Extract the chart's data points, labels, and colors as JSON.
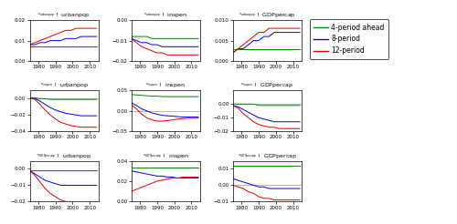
{
  "years": [
    1975,
    1978,
    1981,
    1984,
    1987,
    1990,
    1993,
    1996,
    1999,
    2002,
    2005,
    2008,
    2011,
    2014
  ],
  "xticks": [
    1980,
    1990,
    2000,
    2010
  ],
  "xlim": [
    1975,
    2015
  ],
  "colors": {
    "green": "#008800",
    "blue": "#0000dd",
    "red": "#dd0000",
    "gray": "#999999"
  },
  "legend_labels": [
    "4-period ahead",
    "8-period",
    "12-period"
  ],
  "panels": {
    "r0c0": {
      "title_shock": "urbanpop",
      "title_resp": "urbanpop",
      "ylim": [
        0,
        0.02
      ],
      "yticks": [
        0,
        0.01,
        0.02
      ],
      "green": [
        0.007,
        0.007,
        0.007,
        0.007,
        0.007,
        0.007,
        0.007,
        0.007,
        0.007,
        0.007,
        0.007,
        0.007,
        0.007,
        0.007
      ],
      "blue": [
        0.008,
        0.008,
        0.009,
        0.009,
        0.01,
        0.01,
        0.01,
        0.011,
        0.011,
        0.011,
        0.012,
        0.012,
        0.012,
        0.012
      ],
      "red": [
        0.008,
        0.009,
        0.01,
        0.011,
        0.012,
        0.013,
        0.014,
        0.015,
        0.015,
        0.016,
        0.016,
        0.016,
        0.016,
        0.016
      ],
      "zero_line": false
    },
    "r0c1": {
      "title_shock": "urbanpop",
      "title_resp": "inspen",
      "ylim": [
        -0.02,
        0
      ],
      "yticks": [
        -0.02,
        -0.01,
        0
      ],
      "green": [
        -0.008,
        -0.008,
        -0.008,
        -0.008,
        -0.009,
        -0.009,
        -0.009,
        -0.009,
        -0.009,
        -0.009,
        -0.009,
        -0.009,
        -0.009,
        -0.009
      ],
      "blue": [
        -0.009,
        -0.01,
        -0.011,
        -0.011,
        -0.012,
        -0.012,
        -0.013,
        -0.013,
        -0.013,
        -0.013,
        -0.013,
        -0.013,
        -0.013,
        -0.013
      ],
      "red": [
        -0.009,
        -0.011,
        -0.013,
        -0.014,
        -0.015,
        -0.016,
        -0.016,
        -0.017,
        -0.017,
        -0.017,
        -0.017,
        -0.017,
        -0.017,
        -0.017
      ],
      "zero_line": false
    },
    "r0c2": {
      "title_shock": "urbanpop",
      "title_resp": "GDPpercap",
      "ylim": [
        0,
        0.01
      ],
      "yticks": [
        0,
        0.005,
        0.01
      ],
      "green": [
        0.003,
        0.003,
        0.003,
        0.003,
        0.003,
        0.003,
        0.003,
        0.003,
        0.003,
        0.003,
        0.003,
        0.003,
        0.003,
        0.003
      ],
      "blue": [
        0.002,
        0.003,
        0.003,
        0.004,
        0.005,
        0.005,
        0.006,
        0.006,
        0.007,
        0.007,
        0.007,
        0.007,
        0.007,
        0.007
      ],
      "red": [
        0.002,
        0.003,
        0.004,
        0.005,
        0.006,
        0.007,
        0.007,
        0.008,
        0.008,
        0.008,
        0.008,
        0.008,
        0.008,
        0.008
      ],
      "zero_line": false
    },
    "r1c0": {
      "title_shock": "inspen",
      "title_resp": "urbanpop",
      "ylim": [
        -0.04,
        0.01
      ],
      "yticks": [
        -0.04,
        -0.02,
        0
      ],
      "green": [
        0.001,
        0.001,
        0.0,
        0.0,
        -0.001,
        -0.001,
        -0.001,
        -0.001,
        -0.001,
        -0.001,
        -0.001,
        -0.001,
        -0.001,
        -0.001
      ],
      "blue": [
        0.001,
        0.0,
        -0.003,
        -0.007,
        -0.011,
        -0.014,
        -0.016,
        -0.018,
        -0.019,
        -0.02,
        -0.021,
        -0.021,
        -0.021,
        -0.021
      ],
      "red": [
        0.001,
        -0.001,
        -0.007,
        -0.014,
        -0.02,
        -0.025,
        -0.029,
        -0.031,
        -0.033,
        -0.034,
        -0.035,
        -0.035,
        -0.035,
        -0.035
      ],
      "zero_line": true
    },
    "r1c1": {
      "title_shock": "inspen",
      "title_resp": "inspen",
      "ylim": [
        -0.05,
        0.05
      ],
      "yticks": [
        -0.05,
        0,
        0.05
      ],
      "green": [
        0.04,
        0.039,
        0.038,
        0.037,
        0.036,
        0.036,
        0.035,
        0.035,
        0.035,
        0.035,
        0.035,
        0.035,
        0.035,
        0.035
      ],
      "blue": [
        0.02,
        0.013,
        0.005,
        0.0,
        -0.005,
        -0.008,
        -0.011,
        -0.012,
        -0.013,
        -0.014,
        -0.015,
        -0.015,
        -0.015,
        -0.015
      ],
      "red": [
        0.015,
        0.005,
        -0.008,
        -0.017,
        -0.022,
        -0.025,
        -0.025,
        -0.024,
        -0.022,
        -0.02,
        -0.019,
        -0.018,
        -0.018,
        -0.018
      ],
      "zero_line": true
    },
    "r1c2": {
      "title_shock": "inspen",
      "title_resp": "GDPpercap",
      "ylim": [
        -0.02,
        0.01
      ],
      "yticks": [
        -0.02,
        -0.01,
        0
      ],
      "green": [
        0.0,
        0.0,
        0.0,
        0.0,
        0.0,
        -0.001,
        -0.001,
        -0.001,
        -0.001,
        -0.001,
        -0.001,
        -0.001,
        -0.001,
        -0.001
      ],
      "blue": [
        -0.001,
        -0.002,
        -0.004,
        -0.006,
        -0.008,
        -0.01,
        -0.011,
        -0.012,
        -0.013,
        -0.013,
        -0.013,
        -0.013,
        -0.013,
        -0.013
      ],
      "red": [
        -0.001,
        -0.003,
        -0.007,
        -0.01,
        -0.013,
        -0.015,
        -0.016,
        -0.017,
        -0.017,
        -0.018,
        -0.018,
        -0.018,
        -0.018,
        -0.018
      ],
      "zero_line": true
    },
    "r2c0": {
      "title_shock": "GDPpercap",
      "title_resp": "urbanpop",
      "ylim": [
        -0.02,
        0.005
      ],
      "yticks": [
        -0.02,
        -0.01,
        0
      ],
      "green": [
        -0.001,
        -0.001,
        -0.001,
        -0.001,
        -0.001,
        -0.001,
        -0.001,
        -0.001,
        -0.001,
        -0.001,
        -0.001,
        -0.001,
        -0.001,
        -0.001
      ],
      "blue": [
        -0.001,
        -0.003,
        -0.005,
        -0.007,
        -0.008,
        -0.009,
        -0.01,
        -0.01,
        -0.01,
        -0.01,
        -0.01,
        -0.01,
        -0.01,
        -0.01
      ],
      "red": [
        -0.001,
        -0.004,
        -0.008,
        -0.012,
        -0.015,
        -0.017,
        -0.019,
        -0.02,
        -0.02,
        -0.021,
        -0.021,
        -0.021,
        -0.021,
        -0.021
      ],
      "zero_line": false
    },
    "r2c1": {
      "title_shock": "GDPpercap",
      "title_resp": "inspen",
      "ylim": [
        0,
        0.04
      ],
      "yticks": [
        0,
        0.02,
        0.04
      ],
      "green": [
        0.033,
        0.033,
        0.033,
        0.033,
        0.033,
        0.033,
        0.033,
        0.033,
        0.033,
        0.033,
        0.033,
        0.033,
        0.033,
        0.033
      ],
      "blue": [
        0.03,
        0.029,
        0.028,
        0.027,
        0.026,
        0.025,
        0.025,
        0.024,
        0.024,
        0.023,
        0.023,
        0.023,
        0.023,
        0.023
      ],
      "red": [
        0.01,
        0.012,
        0.014,
        0.016,
        0.018,
        0.02,
        0.021,
        0.022,
        0.023,
        0.023,
        0.024,
        0.024,
        0.024,
        0.024
      ],
      "zero_line": false
    },
    "r2c2": {
      "title_shock": "GDPpercap",
      "title_resp": "GDPpercap",
      "ylim": [
        -0.01,
        0.015
      ],
      "yticks": [
        -0.01,
        0,
        0.01
      ],
      "green": [
        0.012,
        0.012,
        0.012,
        0.012,
        0.012,
        0.012,
        0.012,
        0.012,
        0.012,
        0.012,
        0.012,
        0.012,
        0.012,
        0.012
      ],
      "blue": [
        0.004,
        0.003,
        0.002,
        0.001,
        0.0,
        -0.001,
        -0.001,
        -0.002,
        -0.002,
        -0.002,
        -0.002,
        -0.002,
        -0.002,
        -0.002
      ],
      "red": [
        0.0,
        -0.001,
        -0.002,
        -0.004,
        -0.005,
        -0.007,
        -0.008,
        -0.008,
        -0.009,
        -0.009,
        -0.009,
        -0.009,
        -0.009,
        -0.009
      ],
      "zero_line": true
    }
  }
}
